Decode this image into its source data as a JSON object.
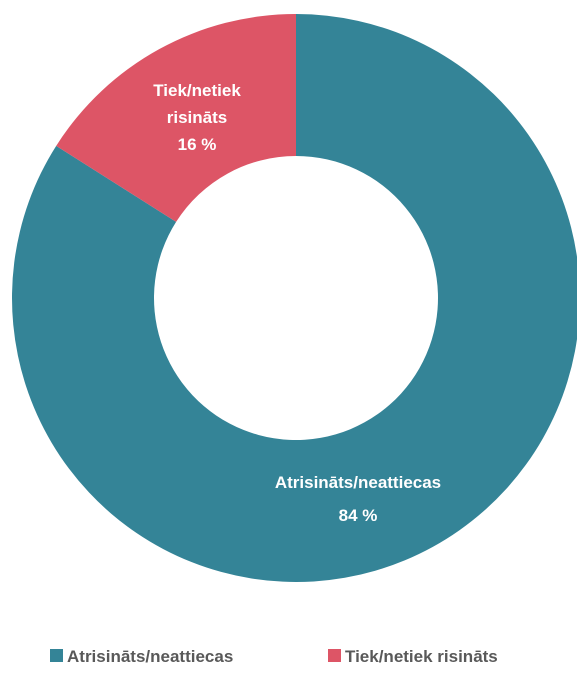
{
  "chart_data": {
    "type": "donut",
    "title": "",
    "series": [
      {
        "name": "",
        "slices": [
          {
            "label": "Atrisināts/neattiecas",
            "value": 84,
            "value_label": "84 %",
            "color": "#348497"
          },
          {
            "label": "Tiek/netiek risināts",
            "value": 16,
            "value_label": "16 %",
            "color": "#dd5566"
          }
        ]
      }
    ],
    "label_lines": [
      [
        "Atrisināts/neattiecas",
        "84 %"
      ],
      [
        "Tiek/netiek",
        "risināts",
        "16 %"
      ]
    ],
    "legend": {
      "position": "bottom",
      "entries": [
        "Atrisināts/neattiecas",
        "Tiek/netiek risināts"
      ]
    },
    "start_angle": "top (12 o'clock)",
    "direction": "clockwise"
  }
}
